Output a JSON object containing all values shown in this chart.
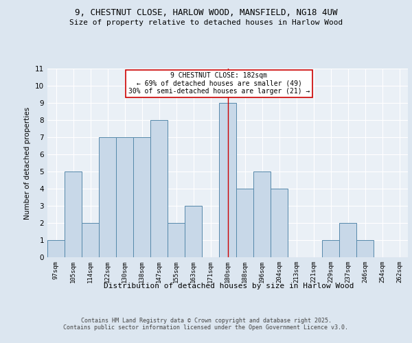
{
  "title1": "9, CHESTNUT CLOSE, HARLOW WOOD, MANSFIELD, NG18 4UW",
  "title2": "Size of property relative to detached houses in Harlow Wood",
  "xlabel": "Distribution of detached houses by size in Harlow Wood",
  "ylabel": "Number of detached properties",
  "bar_labels": [
    "97sqm",
    "105sqm",
    "114sqm",
    "122sqm",
    "130sqm",
    "138sqm",
    "147sqm",
    "155sqm",
    "163sqm",
    "171sqm",
    "180sqm",
    "188sqm",
    "196sqm",
    "204sqm",
    "213sqm",
    "221sqm",
    "229sqm",
    "237sqm",
    "246sqm",
    "254sqm",
    "262sqm"
  ],
  "bar_values": [
    1,
    5,
    2,
    7,
    7,
    7,
    8,
    2,
    3,
    0,
    9,
    4,
    5,
    4,
    0,
    0,
    1,
    2,
    1,
    0,
    0
  ],
  "highlight_index": 10,
  "bar_color": "#c8d8e8",
  "bar_edge_color": "#5588aa",
  "highlight_line_color": "#cc0000",
  "ylim": [
    0,
    11
  ],
  "yticks": [
    0,
    1,
    2,
    3,
    4,
    5,
    6,
    7,
    8,
    9,
    10,
    11
  ],
  "annotation_text": "9 CHESTNUT CLOSE: 182sqm\n← 69% of detached houses are smaller (49)\n30% of semi-detached houses are larger (21) →",
  "annotation_box_color": "#ffffff",
  "annotation_box_edge": "#cc0000",
  "footer_text": "Contains HM Land Registry data © Crown copyright and database right 2025.\nContains public sector information licensed under the Open Government Licence v3.0.",
  "bg_color": "#dce6f0",
  "plot_bg_color": "#eaf0f6",
  "grid_color": "#ffffff"
}
